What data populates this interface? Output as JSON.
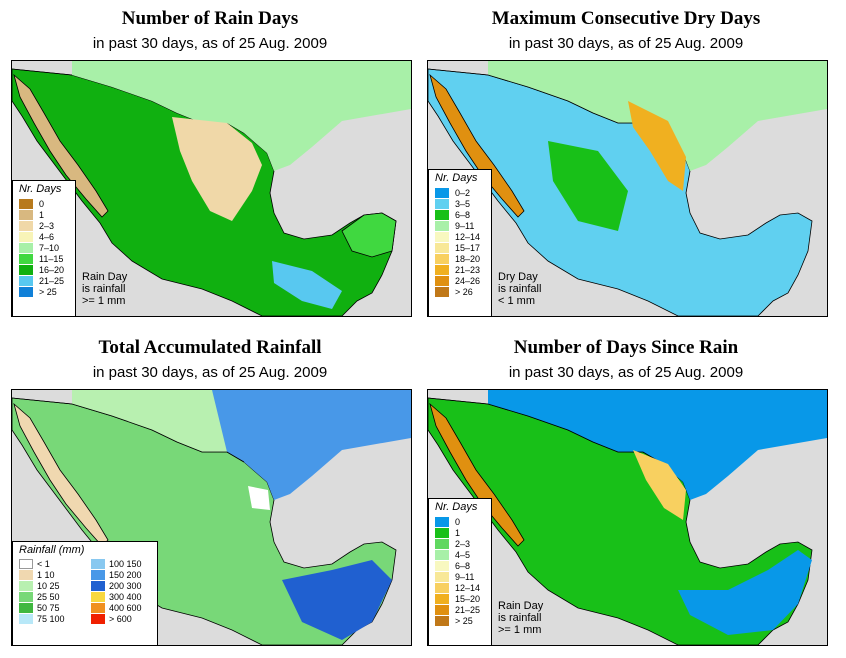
{
  "panels": {
    "rain_days": {
      "title": "Number of Rain Days",
      "subtitle": "in past 30 days, as of  25 Aug. 2009",
      "legend_title": "Nr. Days",
      "legend": [
        {
          "label": "0",
          "color": "#b87a1c"
        },
        {
          "label": "1",
          "color": "#d8b880"
        },
        {
          "label": "2–3",
          "color": "#f0d8a8"
        },
        {
          "label": "4–6",
          "color": "#f8f4b8"
        },
        {
          "label": "7–10",
          "color": "#a8f0a8"
        },
        {
          "label": "11–15",
          "color": "#40d840"
        },
        {
          "label": "16–20",
          "color": "#10b010"
        },
        {
          "label": "21–25",
          "color": "#58c8f0"
        },
        {
          "label": "> 25",
          "color": "#1080d8"
        }
      ],
      "note": [
        "Rain Day",
        "is rainfall",
        ">= 1 mm"
      ]
    },
    "dry_days": {
      "title": "Maximum Consecutive Dry Days",
      "subtitle": "in past 30 days, as of  25 Aug. 2009",
      "legend_title": "Nr. Days",
      "legend": [
        {
          "label": "0–2",
          "color": "#0898e8"
        },
        {
          "label": "3–5",
          "color": "#60d0f0"
        },
        {
          "label": "6–8",
          "color": "#18c018"
        },
        {
          "label": "9–11",
          "color": "#a8f0a8"
        },
        {
          "label": "12–14",
          "color": "#f8f8c0"
        },
        {
          "label": "15–17",
          "color": "#f8e898"
        },
        {
          "label": "18–20",
          "color": "#f8d060"
        },
        {
          "label": "21–23",
          "color": "#f0b020"
        },
        {
          "label": "24–26",
          "color": "#e09010"
        },
        {
          "label": "> 26",
          "color": "#c07818"
        }
      ],
      "note": [
        "Dry Day",
        "is rainfall",
        "< 1 mm"
      ]
    },
    "rainfall": {
      "title": "Total Accumulated Rainfall",
      "subtitle": "in past 30 days, as of  25 Aug. 2009",
      "legend_title": "Rainfall (mm)",
      "legend": [
        {
          "label": "< 1",
          "color": "#ffffff"
        },
        {
          "label": "100  150",
          "color": "#88c8f0"
        },
        {
          "label": "1   10",
          "color": "#f0d8b0"
        },
        {
          "label": "150  200",
          "color": "#4898e8"
        },
        {
          "label": "10   25",
          "color": "#b8f0b0"
        },
        {
          "label": "200  300",
          "color": "#2060d0"
        },
        {
          "label": "25   50",
          "color": "#78d878"
        },
        {
          "label": "300  400",
          "color": "#f8d840"
        },
        {
          "label": "50   75",
          "color": "#40b840"
        },
        {
          "label": "400  600",
          "color": "#f09020"
        },
        {
          "label": "75  100",
          "color": "#b8e8f8"
        },
        {
          "label": "> 600",
          "color": "#f02000"
        }
      ]
    },
    "since_rain": {
      "title": "Number of Days Since Rain",
      "subtitle": "in past 30 days, as of  25 Aug. 2009",
      "legend_title": "Nr. Days",
      "legend": [
        {
          "label": "0",
          "color": "#0898e8"
        },
        {
          "label": "1",
          "color": "#18c018"
        },
        {
          "label": "2–3",
          "color": "#60d860"
        },
        {
          "label": "4–5",
          "color": "#a8f0a8"
        },
        {
          "label": "6–8",
          "color": "#f8f8c0"
        },
        {
          "label": "9–11",
          "color": "#f8e898"
        },
        {
          "label": "12–14",
          "color": "#f8d060"
        },
        {
          "label": "15–20",
          "color": "#f0b020"
        },
        {
          "label": "21–25",
          "color": "#e09010"
        },
        {
          "label": "> 25",
          "color": "#c07818"
        }
      ],
      "note": [
        "Rain Day",
        "is rainfall",
        ">= 1 mm"
      ]
    }
  },
  "colors": {
    "ocean": "#dcdcdc",
    "land_outline": "#000000"
  }
}
